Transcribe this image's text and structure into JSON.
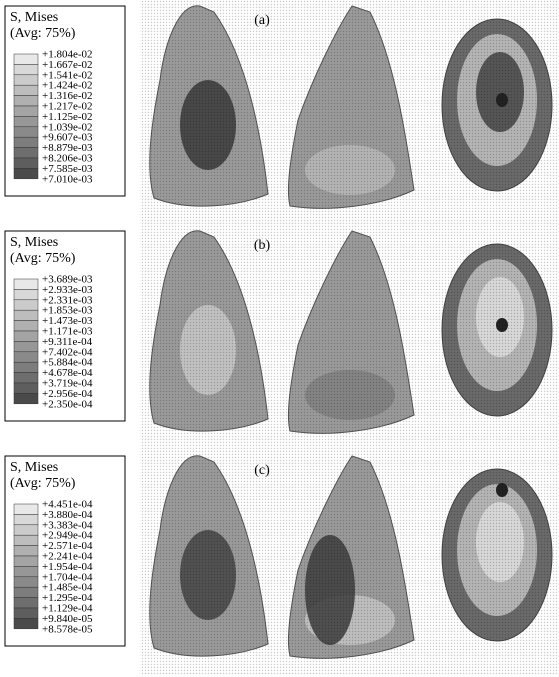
{
  "panels": [
    {
      "label": "(a)",
      "legend": {
        "title": "S, Mises",
        "subtitle": "(Avg: 75%)",
        "values": [
          "+1.804e-02",
          "+1.667e-02",
          "+1.541e-02",
          "+1.424e-02",
          "+1.316e-02",
          "+1.217e-02",
          "+1.125e-02",
          "+1.039e-02",
          "+9.607e-03",
          "+8.879e-03",
          "+8.206e-03",
          "+7.585e-03",
          "+7.010e-03"
        ]
      }
    },
    {
      "label": "(b)",
      "legend": {
        "title": "S, Mises",
        "subtitle": "(Avg: 75%)",
        "values": [
          "+3.689e-03",
          "+2.933e-03",
          "+2.331e-03",
          "+1.853e-03",
          "+1.473e-03",
          "+1.171e-03",
          "+9.311e-04",
          "+7.402e-04",
          "+5.884e-04",
          "+4.678e-04",
          "+3.719e-04",
          "+2.956e-04",
          "+2.350e-04"
        ]
      }
    },
    {
      "label": "(c)",
      "legend": {
        "title": "S, Mises",
        "subtitle": "(Avg: 75%)",
        "values": [
          "+4.451e-04",
          "+3.880e-04",
          "+3.383e-04",
          "+2.949e-04",
          "+2.571e-04",
          "+2.241e-04",
          "+1.954e-04",
          "+1.704e-04",
          "+1.485e-04",
          "+1.295e-04",
          "+1.129e-04",
          "+9.840e-05",
          "+8.578e-05"
        ]
      }
    }
  ]
}
